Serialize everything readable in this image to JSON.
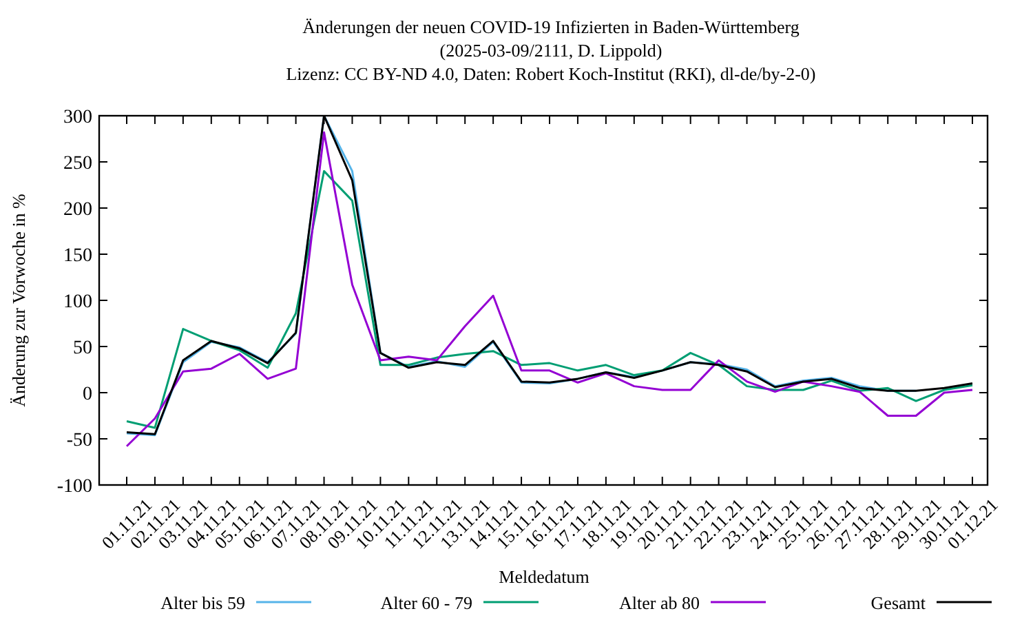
{
  "chart_data": {
    "type": "line",
    "title": "Änderungen der neuen COVID-19 Infizierten in Baden-Württemberg",
    "subtitle": "(2025-03-09/2111, D. Lippold)\nLizenz: CC BY-ND 4.0, Daten: Robert Koch-Institut (RKI), dl-de/by-2-0)",
    "xlabel": "Meldedatum",
    "ylabel": "Änderung zur Vorwoche in %",
    "categories": [
      "01.11.21",
      "02.11.21",
      "03.11.21",
      "04.11.21",
      "05.11.21",
      "06.11.21",
      "07.11.21",
      "08.11.21",
      "09.11.21",
      "10.11.21",
      "11.11.21",
      "12.11.21",
      "13.11.21",
      "14.11.21",
      "15.11.21",
      "16.11.21",
      "17.11.21",
      "18.11.21",
      "19.11.21",
      "20.11.21",
      "21.11.21",
      "22.11.21",
      "23.11.21",
      "24.11.21",
      "25.11.21",
      "26.11.21",
      "27.11.21",
      "28.11.21",
      "29.11.21",
      "30.11.21",
      "01.12.21"
    ],
    "series": [
      {
        "name": "Alter bis 59",
        "color": "#56b4e9",
        "values": [
          -44,
          -46,
          33,
          55,
          49,
          33,
          64,
          300,
          240,
          43,
          28,
          34,
          28,
          55,
          11,
          10,
          15,
          22,
          17,
          24,
          33,
          31,
          25,
          7,
          13,
          16,
          7,
          2,
          2,
          null,
          null
        ]
      },
      {
        "name": "Alter 60 - 79",
        "color": "#009e73",
        "values": [
          -31,
          -38,
          69,
          56,
          46,
          27,
          86,
          240,
          208,
          30,
          30,
          38,
          42,
          45,
          30,
          32,
          24,
          30,
          19,
          24,
          43,
          30,
          7,
          3,
          3,
          13,
          2,
          5,
          -9,
          3,
          8
        ]
      },
      {
        "name": "Alter ab 80",
        "color": "#9400d3",
        "values": [
          -58,
          -28,
          23,
          26,
          42,
          15,
          26,
          282,
          117,
          35,
          39,
          35,
          72,
          105,
          24,
          24,
          11,
          21,
          7,
          3,
          3,
          35,
          12,
          1,
          12,
          7,
          1,
          -25,
          -25,
          0,
          3
        ]
      },
      {
        "name": "Gesamt",
        "color": "#000000",
        "values": [
          -43,
          -45,
          35,
          56,
          48,
          32,
          65,
          300,
          230,
          43,
          27,
          33,
          30,
          56,
          12,
          11,
          15,
          22,
          16,
          24,
          33,
          30,
          23,
          6,
          12,
          15,
          5,
          2,
          2,
          5,
          10
        ]
      }
    ],
    "ylim": [
      -100,
      300
    ],
    "yticks": [
      -100,
      -50,
      0,
      50,
      100,
      150,
      200,
      250,
      300
    ],
    "grid": false,
    "legend": "bottom",
    "marker": "none",
    "line_style": "solid"
  }
}
